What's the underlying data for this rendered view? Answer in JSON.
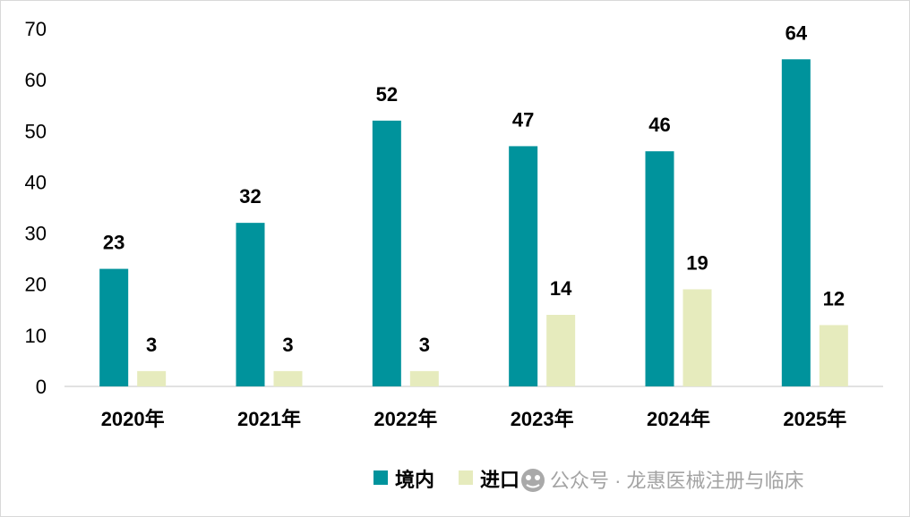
{
  "chart_data": {
    "type": "bar",
    "categories": [
      "2020年",
      "2021年",
      "2022年",
      "2023年",
      "2024年",
      "2025年"
    ],
    "series": [
      {
        "name": "境内",
        "values": [
          23,
          32,
          52,
          47,
          46,
          64
        ],
        "color": "#00939c"
      },
      {
        "name": "进口",
        "values": [
          3,
          3,
          3,
          14,
          19,
          12
        ],
        "color": "#e6ebbd"
      }
    ],
    "y_ticks": [
      "0",
      "10",
      "20",
      "30",
      "40",
      "50",
      "60",
      "70"
    ],
    "ylim": [
      0,
      70
    ],
    "grid": false,
    "legend_position": "bottom-right",
    "data_labels": true
  },
  "watermark": {
    "text": "公众号 · 龙惠医械注册与临床",
    "icon": "wechat-official-account-icon"
  }
}
